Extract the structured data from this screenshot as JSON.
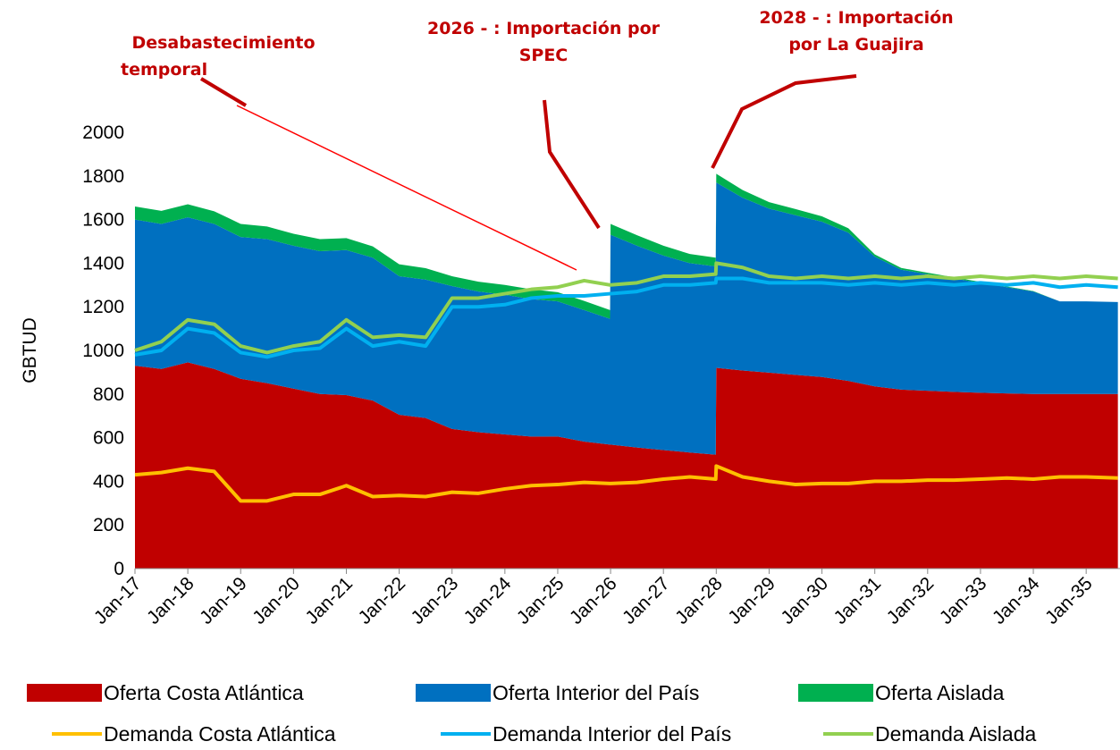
{
  "chart_data": {
    "type": "stacked-area",
    "y_label": "GBTUD",
    "annotations": [
      "Desabastecimiento",
      "temporal",
      "2026 - : Importación por",
      "SPEC",
      "2028 - : Importación",
      "por La Guajira"
    ],
    "x": [
      2017,
      2017.5,
      2018,
      2018.5,
      2019,
      2019.5,
      2020,
      2020.5,
      2021,
      2021.5,
      2022,
      2022.5,
      2023,
      2023.5,
      2024,
      2024.5,
      2025,
      2025.5,
      2025.99,
      2026,
      2026.5,
      2027,
      2027.5,
      2027.99,
      2028,
      2028.5,
      2029,
      2029.5,
      2030,
      2030.5,
      2031,
      2031.5,
      2032,
      2032.5,
      2033,
      2033.5,
      2034,
      2034.5,
      2035,
      2035.6
    ],
    "xlim": [
      2017,
      2035.64
    ],
    "xticks": [
      {
        "value": 2017,
        "label": "Jan-17"
      },
      {
        "value": 2018,
        "label": "Jan-18"
      },
      {
        "value": 2019,
        "label": "Jan-19"
      },
      {
        "value": 2020,
        "label": "Jan-20"
      },
      {
        "value": 2021,
        "label": "Jan-21"
      },
      {
        "value": 2022,
        "label": "Jan-22"
      },
      {
        "value": 2023,
        "label": "Jan-23"
      },
      {
        "value": 2024,
        "label": "Jan-24"
      },
      {
        "value": 2025,
        "label": "Jan-25"
      },
      {
        "value": 2026,
        "label": "Jan-26"
      },
      {
        "value": 2027,
        "label": "Jan-27"
      },
      {
        "value": 2028,
        "label": "Jan-28"
      },
      {
        "value": 2029,
        "label": "Jan-29"
      },
      {
        "value": 2030,
        "label": "Jan-30"
      },
      {
        "value": 2031,
        "label": "Jan-31"
      },
      {
        "value": 2032,
        "label": "Jan-32"
      },
      {
        "value": 2033,
        "label": "Jan-33"
      },
      {
        "value": 2034,
        "label": "Jan-34"
      },
      {
        "value": 2035,
        "label": "Jan-35"
      }
    ],
    "ylim": [
      0,
      2000
    ],
    "yticks": [
      0,
      200,
      400,
      600,
      800,
      1000,
      1200,
      1400,
      1600,
      1800,
      2000
    ],
    "series": [
      {
        "name": "Oferta Costa Atlántica",
        "kind": "area",
        "color": "#c00000",
        "values": [
          930,
          915,
          945,
          915,
          870,
          850,
          825,
          800,
          795,
          770,
          705,
          690,
          640,
          625,
          615,
          605,
          605,
          582,
          568,
          568,
          555,
          543,
          532,
          522,
          920,
          908,
          898,
          888,
          878,
          860,
          835,
          820,
          815,
          810,
          806,
          803,
          800,
          800,
          800,
          800
        ]
      },
      {
        "name": "Oferta Interior del País",
        "kind": "area",
        "color": "#0070c0",
        "values": [
          670,
          665,
          665,
          665,
          650,
          660,
          655,
          655,
          665,
          655,
          635,
          635,
          655,
          645,
          640,
          630,
          620,
          603,
          577,
          962,
          925,
          892,
          868,
          863,
          850,
          792,
          752,
          732,
          712,
          680,
          595,
          550,
          535,
          520,
          504,
          487,
          470,
          425,
          425,
          422
        ]
      },
      {
        "name": "Oferta Aislada",
        "kind": "area",
        "color": "#00b050",
        "values": [
          60,
          60,
          60,
          58,
          60,
          58,
          55,
          55,
          55,
          52,
          55,
          52,
          45,
          45,
          45,
          45,
          42,
          42,
          40,
          50,
          48,
          45,
          42,
          40,
          40,
          35,
          30,
          28,
          25,
          20,
          10,
          8,
          6,
          5,
          4,
          3,
          2,
          0,
          0,
          0
        ]
      },
      {
        "name": "Demanda Costa Atlántica",
        "kind": "line",
        "color": "#ffc000",
        "values": [
          430,
          440,
          460,
          445,
          310,
          310,
          340,
          340,
          380,
          330,
          335,
          330,
          350,
          345,
          365,
          380,
          385,
          395,
          390,
          390,
          395,
          410,
          420,
          410,
          470,
          420,
          400,
          385,
          390,
          390,
          400,
          400,
          405,
          405,
          410,
          415,
          410,
          420,
          420,
          415
        ]
      },
      {
        "name": "Demanda Interior del País",
        "kind": "line",
        "color": "#00b0f0",
        "values": [
          980,
          1000,
          1100,
          1080,
          990,
          970,
          1000,
          1010,
          1100,
          1020,
          1040,
          1020,
          1200,
          1200,
          1210,
          1240,
          1250,
          1250,
          1260,
          1260,
          1270,
          1300,
          1300,
          1310,
          1330,
          1330,
          1310,
          1310,
          1310,
          1300,
          1310,
          1300,
          1310,
          1300,
          1310,
          1300,
          1310,
          1290,
          1300,
          1290
        ]
      },
      {
        "name": "Demanda Aislada",
        "kind": "line",
        "color": "#92d050",
        "values": [
          1000,
          1040,
          1140,
          1120,
          1020,
          990,
          1020,
          1040,
          1140,
          1060,
          1070,
          1060,
          1240,
          1240,
          1260,
          1280,
          1290,
          1320,
          1300,
          1300,
          1310,
          1340,
          1340,
          1350,
          1400,
          1380,
          1340,
          1330,
          1340,
          1330,
          1340,
          1330,
          1340,
          1330,
          1340,
          1330,
          1340,
          1330,
          1340,
          1330
        ]
      }
    ]
  }
}
